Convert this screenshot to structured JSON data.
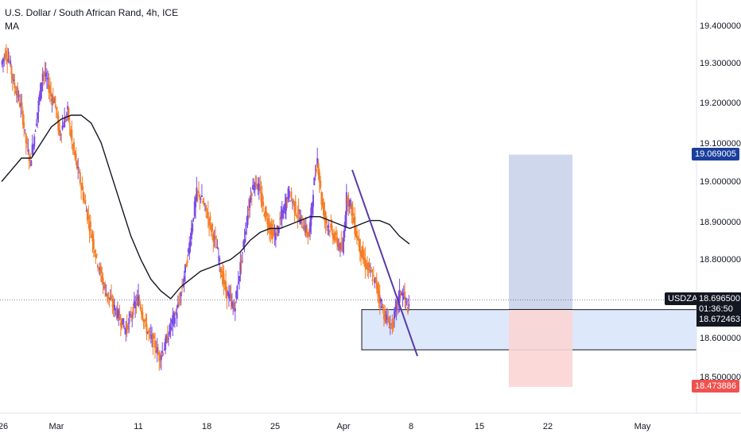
{
  "legend": {
    "title": "U.S. Dollar / South African Rand, 4h, ICE",
    "indicator": "MA"
  },
  "price_axis": {
    "ticks": [
      "19.400000",
      "19.300000",
      "19.200000",
      "19.100000",
      "19.000000",
      "18.900000",
      "18.800000",
      "18.600000",
      "18.500000"
    ],
    "tick_values": [
      19.4,
      19.3,
      19.2,
      19.1,
      19.0,
      18.9,
      18.8,
      18.6,
      18.5
    ]
  },
  "time_axis": {
    "labels": [
      "26",
      "Mar",
      "11",
      "18",
      "25",
      "Apr",
      "8",
      "15",
      "22",
      "May"
    ]
  },
  "labels": {
    "target": "19.069005",
    "ticker": "USDZAR",
    "current_price": "18.696500",
    "countdown": "01:36:50",
    "entry": "18.672463",
    "stop": "18.473886"
  },
  "colors": {
    "up": "#7b4be8",
    "down": "#f57c24",
    "ma": "#131722",
    "trendline": "#5b3aa8",
    "target_zone": "#c9d3ea",
    "stop_zone": "#fbd5d5",
    "support_zone": "#dde8fb",
    "target_label": "#1b3f9c",
    "stop_label": "#f0524f"
  },
  "chart_data": {
    "type": "candlestick",
    "interval": "4h",
    "ylim": [
      18.44,
      19.46
    ],
    "support_zone": [
      18.569,
      18.672
    ],
    "long_position": {
      "entry": 18.672463,
      "target": 19.069005,
      "stop": 18.473886
    },
    "trendline": {
      "start": 19.03,
      "end": 18.553
    },
    "ma_points": [
      19.0,
      19.03,
      19.06,
      19.06,
      19.1,
      19.14,
      19.16,
      19.17,
      19.17,
      19.15,
      19.1,
      19.02,
      18.94,
      18.86,
      18.8,
      18.75,
      18.72,
      18.7,
      18.73,
      18.75,
      18.77,
      18.78,
      18.79,
      18.8,
      18.82,
      18.85,
      18.87,
      18.88,
      18.88,
      18.89,
      18.9,
      18.91,
      18.91,
      18.9,
      18.89,
      18.88,
      18.89,
      18.9,
      18.9,
      18.89,
      18.86,
      18.84
    ],
    "price_path": [
      19.3,
      19.33,
      19.31,
      19.25,
      19.22,
      19.18,
      19.1,
      19.05,
      19.12,
      19.2,
      19.28,
      19.26,
      19.22,
      19.2,
      19.12,
      19.15,
      19.18,
      19.1,
      19.05,
      19.0,
      18.95,
      18.9,
      18.85,
      18.8,
      18.76,
      18.72,
      18.7,
      18.68,
      18.66,
      18.64,
      18.62,
      18.65,
      18.68,
      18.7,
      18.66,
      18.62,
      18.6,
      18.58,
      18.55,
      18.57,
      18.6,
      18.64,
      18.66,
      18.7,
      18.76,
      18.82,
      18.9,
      18.97,
      18.96,
      18.93,
      18.9,
      18.86,
      18.82,
      18.76,
      18.72,
      18.7,
      18.67,
      18.75,
      18.82,
      18.9,
      18.97,
      19.0,
      18.98,
      18.93,
      18.9,
      18.87,
      18.86,
      18.9,
      18.93,
      18.97,
      18.95,
      18.92,
      18.9,
      18.88,
      18.86,
      18.98,
      19.06,
      18.95,
      18.9,
      18.88,
      18.86,
      18.84,
      18.82,
      18.96,
      18.94,
      18.88,
      18.84,
      18.8,
      18.78,
      18.76,
      18.74,
      18.7,
      18.66,
      18.64,
      18.63,
      18.68,
      18.72,
      18.7,
      18.67
    ]
  }
}
